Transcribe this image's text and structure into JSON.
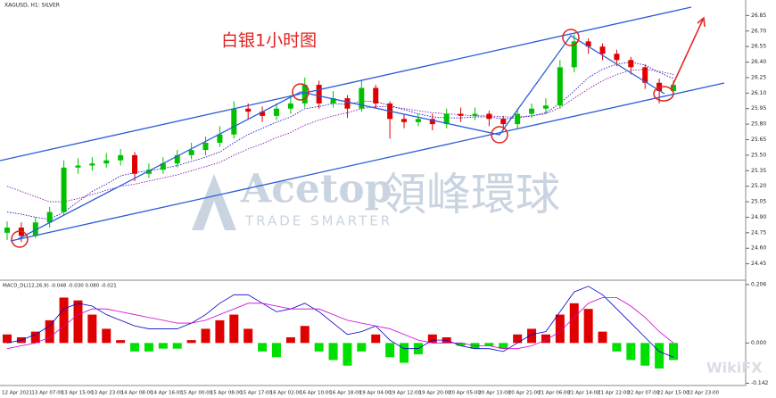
{
  "chart_data": [
    {
      "type": "candlestick",
      "title": "XAGUSD, H1: SILVER",
      "annotation": "白银1小时图",
      "watermark": [
        "Acetop",
        "領峰環球",
        "TRADE SMARTER"
      ],
      "up_color": "#00c000",
      "down_color": "#e00000",
      "ylim": [
        24.3,
        27.0
      ],
      "yticks": [
        {
          "value": 26.85,
          "label": "26.85"
        },
        {
          "value": 26.7,
          "label": "26.70"
        },
        {
          "value": 26.55,
          "label": "26.55"
        },
        {
          "value": 26.4,
          "label": "26.40"
        },
        {
          "value": 26.25,
          "label": "26.25"
        },
        {
          "value": 26.1,
          "label": "26.10"
        },
        {
          "value": 25.95,
          "label": "25.95"
        },
        {
          "value": 25.8,
          "label": "25.80"
        },
        {
          "value": 25.65,
          "label": "25.65"
        },
        {
          "value": 25.5,
          "label": "25.50"
        },
        {
          "value": 25.35,
          "label": "25.35"
        },
        {
          "value": 25.2,
          "label": "25.20"
        },
        {
          "value": 25.05,
          "label": "25.05"
        },
        {
          "value": 24.9,
          "label": "24.90"
        },
        {
          "value": 24.75,
          "label": "24.75"
        },
        {
          "value": 24.6,
          "label": "24.60"
        },
        {
          "value": 24.45,
          "label": "24.45"
        }
      ],
      "open": [
        24.75,
        24.8,
        24.72,
        24.85,
        24.95,
        25.38,
        25.4,
        25.42,
        25.45,
        25.5,
        25.32,
        25.36,
        25.42,
        25.5,
        25.55,
        25.62,
        25.7,
        25.95,
        25.92,
        25.88,
        25.95,
        26.0,
        26.18,
        26.0,
        26.05,
        25.95,
        26.15,
        26.0,
        25.85,
        25.82,
        25.85,
        25.8,
        25.9,
        25.88,
        25.9,
        25.85,
        25.8,
        25.9,
        25.95,
        25.98,
        26.35,
        26.6,
        26.55,
        26.48,
        26.42,
        26.35,
        26.2,
        26.12
      ],
      "high": [
        24.86,
        24.85,
        24.9,
        25.0,
        25.45,
        25.47,
        25.48,
        25.52,
        25.56,
        25.53,
        25.42,
        25.48,
        25.55,
        25.62,
        25.68,
        25.78,
        26.02,
        26.0,
        25.97,
        26.0,
        26.08,
        26.25,
        26.22,
        26.12,
        26.08,
        26.22,
        26.18,
        26.02,
        25.9,
        25.9,
        25.9,
        25.95,
        25.96,
        25.96,
        25.93,
        25.88,
        25.95,
        26.0,
        26.05,
        26.42,
        26.67,
        26.63,
        26.58,
        26.52,
        26.45,
        26.38,
        26.24,
        26.22
      ],
      "low": [
        24.68,
        24.66,
        24.7,
        24.8,
        24.92,
        25.32,
        25.35,
        25.38,
        25.4,
        25.25,
        25.28,
        25.32,
        25.38,
        25.46,
        25.5,
        25.58,
        25.66,
        25.85,
        25.82,
        25.84,
        25.9,
        25.96,
        25.95,
        25.96,
        25.86,
        25.92,
        25.95,
        25.66,
        25.76,
        25.78,
        25.74,
        25.76,
        25.82,
        25.84,
        25.78,
        25.74,
        25.76,
        25.86,
        25.9,
        25.95,
        26.3,
        26.48,
        26.42,
        26.36,
        26.28,
        26.14,
        26.0,
        26.08
      ],
      "close": [
        24.8,
        24.72,
        24.85,
        24.95,
        25.38,
        25.4,
        25.42,
        25.45,
        25.5,
        25.32,
        25.36,
        25.42,
        25.5,
        25.55,
        25.62,
        25.7,
        25.95,
        25.92,
        25.88,
        25.95,
        26.0,
        26.18,
        26.0,
        26.05,
        25.95,
        26.15,
        26.0,
        25.85,
        25.82,
        25.85,
        25.8,
        25.9,
        25.88,
        25.9,
        25.85,
        25.8,
        25.9,
        25.95,
        25.98,
        26.35,
        26.6,
        26.55,
        26.48,
        26.42,
        26.35,
        26.2,
        26.12,
        26.18
      ],
      "series": [
        {
          "color": "#0000cc",
          "values": [
            24.95,
            24.93,
            24.9,
            24.88,
            24.95,
            25.05,
            25.15,
            25.22,
            25.3,
            25.33,
            25.35,
            25.37,
            25.4,
            25.44,
            25.48,
            25.53,
            25.62,
            25.7,
            25.76,
            25.82,
            25.87,
            25.95,
            25.97,
            26.0,
            25.99,
            26.02,
            26.02,
            25.98,
            25.94,
            25.9,
            25.87,
            25.86,
            25.86,
            25.87,
            25.87,
            25.85,
            25.86,
            25.88,
            25.91,
            26.0,
            26.12,
            26.25,
            26.33,
            26.38,
            26.4,
            26.37,
            26.3,
            26.24
          ]
        },
        {
          "color": "#7a00a8",
          "values": [
            25.2,
            25.15,
            25.1,
            25.05,
            25.05,
            25.08,
            25.12,
            25.16,
            25.2,
            25.22,
            25.25,
            25.28,
            25.31,
            25.35,
            25.39,
            25.43,
            25.5,
            25.56,
            25.61,
            25.67,
            25.72,
            25.79,
            25.84,
            25.88,
            25.91,
            25.95,
            25.97,
            25.97,
            25.95,
            25.93,
            25.91,
            25.9,
            25.89,
            25.88,
            25.88,
            25.87,
            25.87,
            25.88,
            25.9,
            25.96,
            26.05,
            26.14,
            26.22,
            26.28,
            26.32,
            26.33,
            26.31,
            26.28
          ]
        }
      ],
      "x_labels": [
        "12 Apr 2021",
        "13 Apr 07:00",
        "13 Apr 15:00",
        "13 Apr 23:00",
        "14 Apr 08:00",
        "14 Apr 16:00",
        "15 Apr 00:00",
        "15 Apr 08:00",
        "15 Apr 17:00",
        "16 Apr 02:00",
        "16 Apr 10:00",
        "16 Apr 18:00",
        "19 Apr 04:00",
        "19 Apr 12:00",
        "19 Apr 20:00",
        "20 Apr 05:00",
        "20 Apr 13:00",
        "20 Apr 21:00",
        "21 Apr 06:00",
        "21 Apr 14:00",
        "21 Apr 22:00",
        "22 Apr 07:00",
        "22 Apr 15:00",
        "22 Apr 23:00"
      ]
    },
    {
      "type": "macd",
      "title": "MACD_DL(12,26,9) -0.048 -0.030 0.080 -0.021",
      "badge": "WikiFX",
      "pos_color": "#e00000",
      "neg_color": "#00e000",
      "ylim": [
        -0.15,
        0.215
      ],
      "yticks": [
        0.206,
        {
          "value": 0,
          "label": "0.000"
        },
        -0.142
      ],
      "values": [
        0.03,
        0.02,
        0.04,
        0.08,
        0.16,
        0.15,
        0.1,
        0.05,
        0.01,
        -0.03,
        -0.03,
        -0.02,
        -0.02,
        0.01,
        0.05,
        0.08,
        0.1,
        0.05,
        -0.03,
        -0.05,
        0.02,
        0.06,
        -0.03,
        -0.06,
        -0.08,
        -0.03,
        0.03,
        -0.05,
        -0.07,
        -0.04,
        0.03,
        0.02,
        -0.01,
        -0.02,
        -0.01,
        -0.02,
        0.03,
        0.05,
        0.03,
        0.1,
        0.14,
        0.12,
        0.04,
        -0.03,
        -0.06,
        -0.08,
        -0.09,
        -0.06
      ],
      "series": [
        {
          "color": "#0000cc",
          "values": [
            0.0,
            0.01,
            0.03,
            0.06,
            0.12,
            0.14,
            0.13,
            0.1,
            0.08,
            0.06,
            0.05,
            0.05,
            0.05,
            0.07,
            0.1,
            0.14,
            0.17,
            0.17,
            0.14,
            0.11,
            0.12,
            0.14,
            0.11,
            0.07,
            0.03,
            0.04,
            0.06,
            0.01,
            -0.02,
            -0.02,
            0.01,
            0.01,
            -0.01,
            -0.02,
            -0.02,
            -0.03,
            0.0,
            0.03,
            0.04,
            0.11,
            0.18,
            0.2,
            0.17,
            0.12,
            0.07,
            0.02,
            -0.03,
            -0.05
          ]
        },
        {
          "color": "#d000d0",
          "values": [
            -0.02,
            -0.01,
            0.0,
            0.02,
            0.06,
            0.1,
            0.12,
            0.12,
            0.11,
            0.1,
            0.09,
            0.08,
            0.07,
            0.07,
            0.08,
            0.1,
            0.12,
            0.14,
            0.14,
            0.13,
            0.12,
            0.12,
            0.12,
            0.1,
            0.08,
            0.07,
            0.06,
            0.05,
            0.03,
            0.01,
            0.0,
            0.0,
            0.0,
            -0.01,
            -0.01,
            -0.02,
            -0.02,
            -0.01,
            0.01,
            0.04,
            0.09,
            0.14,
            0.16,
            0.16,
            0.13,
            0.09,
            0.04,
            0.0
          ]
        }
      ]
    }
  ]
}
